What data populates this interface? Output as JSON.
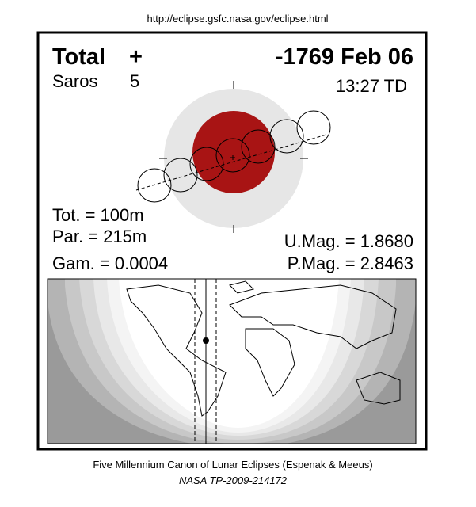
{
  "header": {
    "url": "http://eclipse.gsfc.nasa.gov/eclipse.html"
  },
  "panel": {
    "eclipse_type": "Total",
    "symbol": "+",
    "date": "-1769 Feb 06",
    "saros_label": "Saros",
    "saros_number": "5",
    "time": "13:27 TD",
    "total_duration": "Tot. = 100m",
    "partial_duration": "Par. = 215m",
    "gamma": "Gam. = 0.0004",
    "umbral_magnitude": "U.Mag. = 1.8680",
    "penumbral_magnitude": "P.Mag. = 2.8463"
  },
  "footer": {
    "canon": "Five Millennium Canon of Lunar Eclipses (Espenak & Meeus)",
    "reference": "NASA TP-2009-214172"
  }
}
